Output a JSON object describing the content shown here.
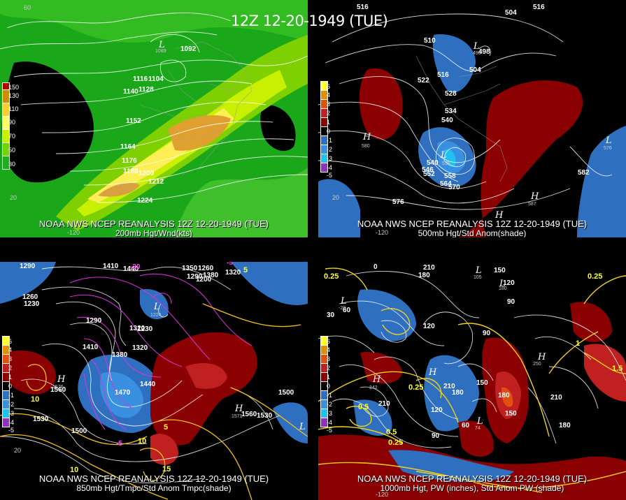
{
  "title": "12Z 12-20-1949 (TUE)",
  "panels": {
    "p200": {
      "caption1": "NOAA NWS NCEP REANALYSIS 12Z 12-20-1949 (TUE)",
      "caption2": "200mb Hgt/Wnd(kts)",
      "legend": [
        "150",
        "130",
        "110",
        "90",
        "70",
        "50",
        "30"
      ],
      "legend_colors": [
        "#b00000",
        "#d28a00",
        "#ffcc33",
        "#ffff66",
        "#c8f000",
        "#6fd400",
        "#22aa22"
      ],
      "contour_labels": [
        "1092",
        "1104",
        "1116",
        "1128",
        "1140",
        "1152",
        "1164",
        "1176",
        "1188",
        "1200",
        "1212",
        "1224"
      ],
      "low_center": "L",
      "low_value": "1089",
      "edge_labels": [
        "60",
        "20",
        "-120"
      ]
    },
    "p500": {
      "caption1": "NOAA NWS NCEP REANALYSIS 12Z 12-20-1949 (TUE)",
      "caption2": "500mb Hgt/Std Anom(shade)",
      "legend": [
        "6",
        "4",
        "3",
        "2",
        "1",
        "0",
        "-1",
        "-2",
        "-3",
        "-4",
        "-5"
      ],
      "legend_colors": [
        "#ffff33",
        "#e09000",
        "#e05010",
        "#c02020",
        "#8b0000",
        "#000000",
        "#2f6fc0",
        "#3a90e0",
        "#22c0ee",
        "#9030c0",
        "#7a10a0"
      ],
      "contour_labels": [
        "516",
        "504",
        "516",
        "510",
        "498",
        "522",
        "516",
        "528",
        "504",
        "534",
        "540",
        "546",
        "540",
        "552",
        "558",
        "564",
        "570",
        "576",
        "582"
      ],
      "highs": [
        {
          "label": "H",
          "value": "580"
        },
        {
          "label": "H",
          "value": "587"
        },
        {
          "label": "H",
          "value": ""
        }
      ],
      "lows": [
        {
          "label": "L",
          "value": "498"
        },
        {
          "label": "L",
          "value": "535"
        },
        {
          "label": "L",
          "value": "576"
        }
      ],
      "edge_labels": [
        "20",
        "-120"
      ]
    },
    "p850": {
      "caption1": "NOAA NWS NCEP REANALYSIS 12Z 12-20-1949 (TUE)",
      "caption2": "850mb Hgt/Tmpc/Std Anom Tmpc(shade)",
      "contour_labels": [
        "1290",
        "1410",
        "1440",
        "1350",
        "1260",
        "1380",
        "1320",
        "1290",
        "1200",
        "1260",
        "1230",
        "1290",
        "1410",
        "1320",
        "1380",
        "1440",
        "1470",
        "1560",
        "1530",
        "1500",
        "1500",
        "1560",
        "1530",
        "1230",
        "1320"
      ],
      "temp_labels": [
        "-20",
        "-5",
        "5",
        "10",
        "-5",
        "10",
        "5",
        "15",
        "10"
      ],
      "highs": [
        {
          "label": "H",
          "value": "1576"
        },
        {
          "label": "H",
          "value": "1571"
        }
      ],
      "lows": [
        {
          "label": "L",
          "value": "1224"
        },
        {
          "label": "L",
          "value": ""
        }
      ],
      "edge_labels": [
        "20"
      ]
    },
    "p1000": {
      "caption1": "NOAA NWS NCEP REANALYSIS 12Z 12-20-1949 (TUE)",
      "caption2": "1000mb Hgt, PW (inches), Std Anom PW (shade)",
      "contour_labels": [
        "0",
        "210",
        "180",
        "150",
        "120",
        "90",
        "60",
        "30",
        "90",
        "120",
        "150",
        "180",
        "210",
        "60",
        "90",
        "120",
        "210",
        "210",
        "180",
        "150",
        "180"
      ],
      "pw_labels": [
        "0.25",
        "0.5",
        "0.25",
        "0.5",
        "0.25",
        "1",
        "1.5",
        "0.25"
      ],
      "highs": [
        {
          "label": "H",
          "value": "242"
        },
        {
          "label": "H",
          "value": ""
        },
        {
          "label": "H",
          "value": "250"
        }
      ],
      "lows": [
        {
          "label": "L",
          "value": "-20"
        },
        {
          "label": "L",
          "value": "105"
        },
        {
          "label": "L",
          "value": "180"
        },
        {
          "label": "L",
          "value": "74"
        }
      ],
      "legend": [
        "6",
        "4",
        "3",
        "2",
        "1",
        "0",
        "-1",
        "-2",
        "-3",
        "-4",
        "-5"
      ],
      "edge_labels": [
        "-120"
      ]
    }
  }
}
